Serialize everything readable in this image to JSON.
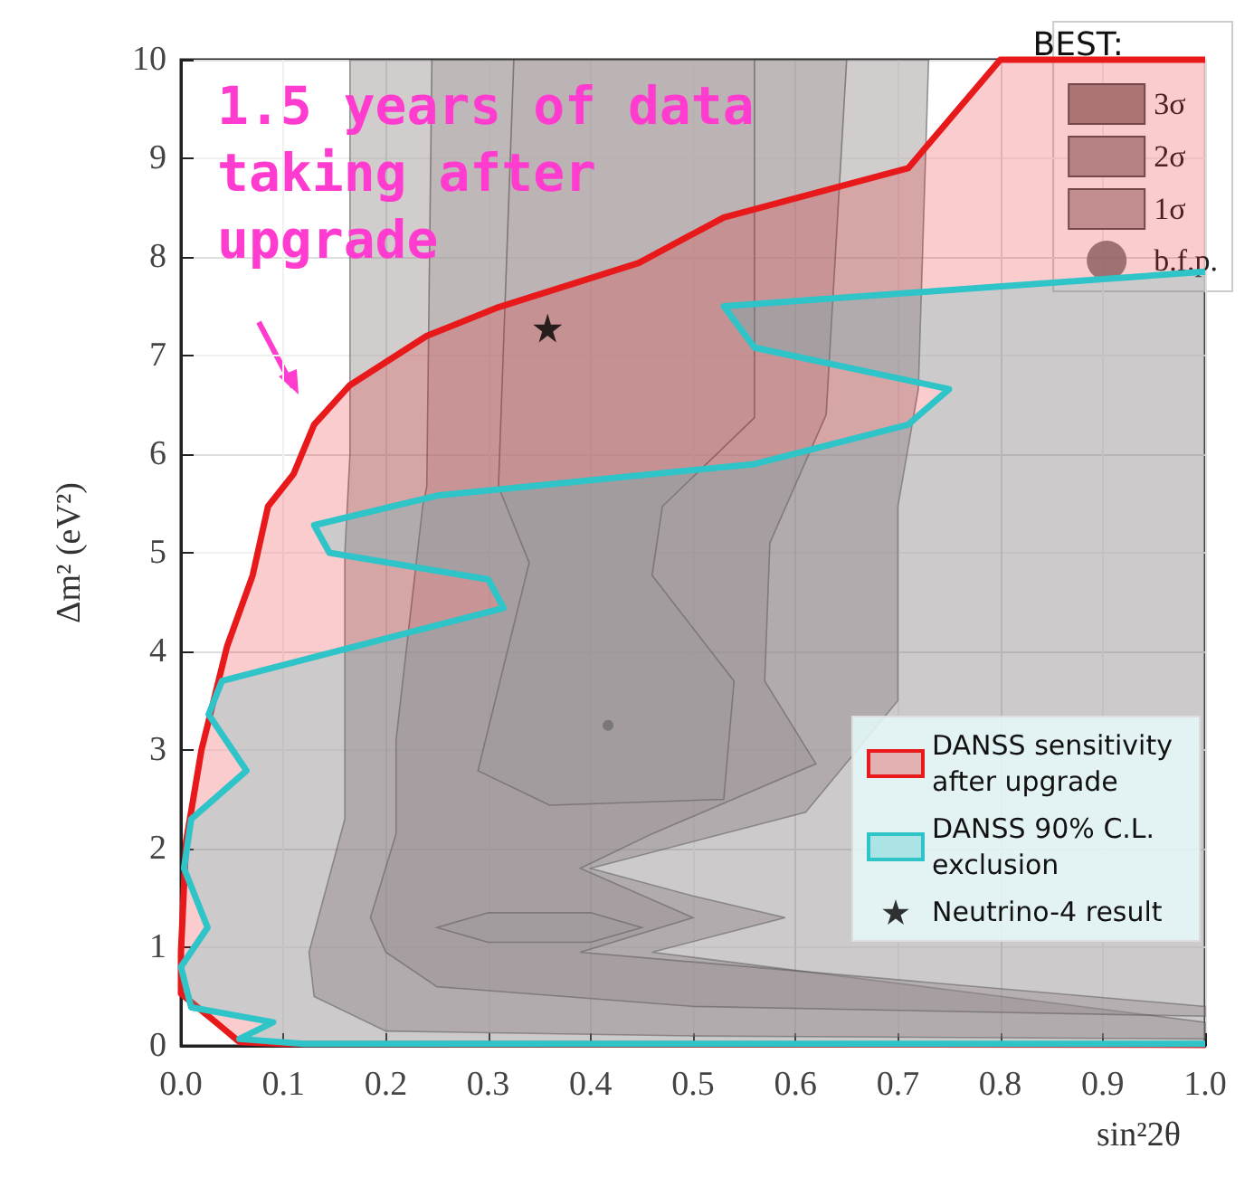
{
  "chart_data": {
    "type": "area",
    "xlabel": "sin²2θ",
    "ylabel": "Δm² (eV²)",
    "legend_title": "BEST:",
    "xlim": [
      0,
      1
    ],
    "ylim": [
      0,
      10
    ],
    "xticks": [
      {
        "value": 0,
        "label": "0.0"
      },
      {
        "value": 0.1,
        "label": "0.1"
      },
      {
        "value": 0.2,
        "label": "0.2"
      },
      {
        "value": 0.3,
        "label": "0.3"
      },
      {
        "value": 0.4,
        "label": "0.4"
      },
      {
        "value": 0.5,
        "label": "0.5"
      },
      {
        "value": 0.6,
        "label": "0.6"
      },
      {
        "value": 0.7,
        "label": "0.7"
      },
      {
        "value": 0.8,
        "label": "0.8"
      },
      {
        "value": 0.9,
        "label": "0.9"
      },
      {
        "value": 1,
        "label": "1.0"
      }
    ],
    "yticks": [
      0,
      1,
      2,
      3,
      4,
      5,
      6,
      7,
      8,
      9,
      10
    ],
    "grid": true,
    "legend": "right",
    "annotations": [
      "1.5 years of data taking after upgrade"
    ],
    "series": [
      {
        "name": "3σ",
        "color": "#9a9090",
        "x": [
          0.165,
          0.165,
          0.16,
          0.16,
          0.125,
          0.13,
          0.2,
          0.5,
          1,
          1,
          0.46,
          0.59,
          0.5,
          0.4,
          0.61,
          0.7,
          0.7,
          0.72,
          0.73
        ],
        "values": [
          10,
          6,
          5,
          2.3,
          0.95,
          0.5,
          0.15,
          0.1,
          0.07,
          0.24,
          0.95,
          1.3,
          1.52,
          1.8,
          2.37,
          3.5,
          5.47,
          6.66,
          10
        ]
      },
      {
        "name": "2σ",
        "color": "#a89f9f",
        "x": [
          0.245,
          0.24,
          0.236,
          0.21,
          0.21,
          0.185,
          0.2,
          0.25,
          0.5,
          1,
          1,
          0.39,
          0.5,
          0.39,
          0.46,
          0.62,
          0.57,
          0.575,
          0.63,
          0.65
        ],
        "values": [
          10,
          5.67,
          5.47,
          3.1,
          2.15,
          1.3,
          0.95,
          0.6,
          0.4,
          0.3,
          0.4,
          0.95,
          1.3,
          1.8,
          2.15,
          2.86,
          3.7,
          5.1,
          6.4,
          10
        ]
      },
      {
        "name": "1σ",
        "color": "#b8b0b0",
        "x": [
          0.325,
          0.31,
          0.34,
          0.29,
          0.36,
          0.53,
          0.54,
          0.46,
          0.47,
          0.56,
          0.56
        ],
        "values": [
          10,
          5.67,
          4.9,
          2.79,
          2.44,
          2.5,
          3.7,
          4.77,
          5.47,
          6.37,
          10
        ]
      },
      {
        "color": "#b8b0b0",
        "x": [
          0.25,
          0.3,
          0.4,
          0.45,
          0.4,
          0.3
        ],
        "values": [
          1.2,
          1.05,
          1.05,
          1.2,
          1.35,
          1.35
        ]
      },
      {
        "name": "b.f.p.",
        "type": "scatter",
        "marker": "circle",
        "color": "#6e6e6e",
        "x": [
          0.417
        ],
        "values": [
          3.25
        ]
      },
      {
        "name": "DANSS sensitivity after upgrade",
        "color": "#e8191b",
        "x": [
          1,
          0.8,
          0.71,
          0.53,
          0.447,
          0.31,
          0.24,
          0.165,
          0.13,
          0.11,
          0.085,
          0.07,
          0.045,
          0.02,
          0.005,
          0,
          0,
          0.034,
          0.057,
          0.1,
          1
        ],
        "values": [
          10,
          10,
          8.9,
          8.4,
          7.94,
          7.49,
          7.2,
          6.7,
          6.3,
          5.8,
          5.47,
          4.77,
          4.05,
          3,
          2.07,
          0.95,
          0.53,
          0.24,
          0.04,
          0.02,
          0.01
        ]
      },
      {
        "name": "DANSS 90% C.L. exclusion",
        "color": "#2ec4c8",
        "x": [
          1,
          0.53,
          0.56,
          0.75,
          0.71,
          0.56,
          0.25,
          0.13,
          0.145,
          0.3,
          0.315,
          0.04,
          0.027,
          0.064,
          0.01,
          0.003,
          0.026,
          0,
          0.01,
          0.09,
          0.057,
          0.12,
          1
        ],
        "values": [
          7.85,
          7.5,
          7.08,
          6.66,
          6.3,
          5.9,
          5.58,
          5.28,
          5,
          4.73,
          4.44,
          3.7,
          3.36,
          2.79,
          2.3,
          1.8,
          1.2,
          0.8,
          0.39,
          0.24,
          0.07,
          0.02,
          0.02
        ]
      },
      {
        "name": "Neutrino-4 result",
        "type": "scatter",
        "marker": "star",
        "color": "#000000",
        "x": [
          0.358
        ],
        "values": [
          7.28
        ]
      }
    ]
  }
}
